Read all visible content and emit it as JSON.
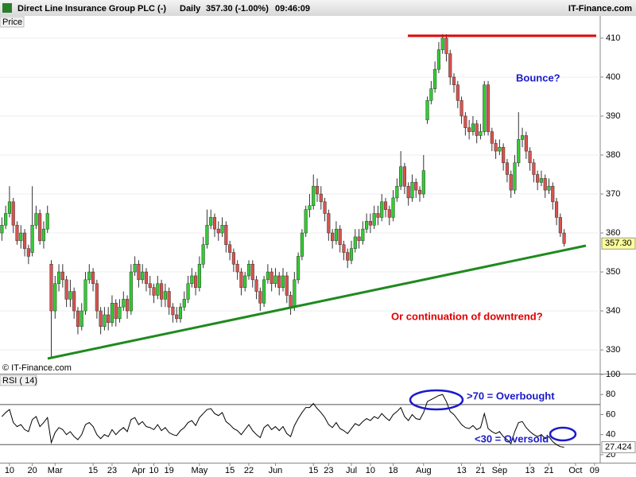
{
  "header": {
    "title": "Direct Line Insurance Group PLC (-)",
    "interval": "Daily",
    "quote": "357.30 (-1.00%)",
    "time": "09:46:09",
    "source": "IT-Finance.com",
    "copyright": "© IT-Finance.com"
  },
  "chart_data": [
    {
      "type": "candlestick",
      "panel_label": "Price",
      "up_color": "#33cc33",
      "down_color": "#d9534f",
      "categories": [
        null,
        null,
        "10",
        null,
        null,
        null,
        null,
        null,
        "20",
        null,
        null,
        null,
        null,
        null,
        "Mar",
        null,
        null,
        null,
        null,
        null,
        null,
        null,
        null,
        null,
        "15",
        null,
        null,
        null,
        null,
        "23",
        null,
        null,
        null,
        null,
        null,
        null,
        "Apr",
        null,
        null,
        null,
        "10",
        null,
        null,
        null,
        "19",
        null,
        null,
        null,
        null,
        null,
        null,
        null,
        "May",
        null,
        null,
        null,
        null,
        null,
        null,
        null,
        "15",
        null,
        null,
        null,
        null,
        "22",
        null,
        null,
        null,
        null,
        null,
        null,
        "Jun",
        null,
        null,
        null,
        null,
        null,
        null,
        null,
        null,
        null,
        "15",
        null,
        null,
        null,
        "23",
        null,
        null,
        null,
        null,
        null,
        "Jul",
        null,
        null,
        null,
        null,
        "10",
        null,
        null,
        null,
        null,
        null,
        "18",
        null,
        null,
        null,
        null,
        null,
        null,
        null,
        "Aug",
        null,
        null,
        null,
        null,
        null,
        null,
        null,
        null,
        null,
        "13",
        null,
        null,
        null,
        null,
        "21",
        null,
        null,
        null,
        null,
        "Sep",
        null,
        null,
        null,
        null,
        null,
        null,
        null,
        "13",
        null,
        null,
        null,
        null,
        "21",
        null,
        null,
        null,
        null,
        null,
        null,
        "Oct",
        null,
        null,
        null,
        null,
        "09",
        null
      ],
      "open": [
        360,
        362,
        365,
        368,
        362,
        358,
        360,
        356,
        355,
        362,
        365,
        358,
        361,
        352,
        340,
        347,
        350,
        348,
        343,
        345,
        340,
        336,
        340,
        348,
        350,
        347,
        340,
        336,
        339,
        337,
        342,
        338,
        341,
        343,
        340,
        350,
        352,
        348,
        350,
        347,
        346,
        344,
        347,
        343,
        345,
        341,
        339,
        338,
        341,
        343,
        347,
        349,
        346,
        352,
        357,
        362,
        364,
        361,
        360,
        362,
        357,
        355,
        352,
        350,
        346,
        349,
        352,
        348,
        345,
        342,
        348,
        350,
        347,
        349,
        346,
        349,
        344,
        341,
        348,
        354,
        360,
        366,
        367,
        372,
        370,
        368,
        365,
        360,
        358,
        361,
        357,
        355,
        353,
        356,
        359,
        358,
        361,
        363,
        362,
        365,
        364,
        368,
        366,
        364,
        369,
        372,
        377,
        372,
        369,
        373,
        371,
        370,
        389,
        394,
        397,
        402,
        407,
        410,
        406,
        400,
        398,
        394,
        390,
        387,
        386,
        388,
        385,
        386,
        398,
        386,
        383,
        381,
        382,
        378,
        375,
        371,
        378,
        384,
        385,
        381,
        378,
        375,
        373,
        374,
        371,
        372,
        368,
        364,
        360,
        null,
        null,
        null,
        null,
        null,
        null,
        null,
        null,
        null
      ],
      "high": [
        364,
        367,
        372,
        369,
        363,
        362,
        361,
        357,
        372,
        367,
        366,
        363,
        367,
        353,
        349,
        352,
        352,
        349,
        348,
        346,
        341,
        342,
        350,
        352,
        351,
        348,
        341,
        341,
        341,
        344,
        343,
        343,
        345,
        344,
        352,
        354,
        353,
        352,
        351,
        349,
        347,
        349,
        348,
        347,
        346,
        342,
        341,
        342,
        345,
        349,
        351,
        350,
        354,
        359,
        366,
        366,
        365,
        363,
        364,
        363,
        358,
        356,
        353,
        351,
        350,
        353,
        353,
        349,
        346,
        349,
        352,
        351,
        351,
        350,
        351,
        350,
        345,
        350,
        355,
        361,
        367,
        370,
        375,
        374,
        372,
        369,
        366,
        361,
        363,
        362,
        358,
        356,
        358,
        361,
        361,
        363,
        365,
        365,
        367,
        367,
        370,
        369,
        367,
        371,
        374,
        381,
        378,
        373,
        375,
        374,
        372,
        380,
        395,
        399,
        404,
        409,
        411,
        411,
        407,
        401,
        399,
        395,
        391,
        389,
        390,
        389,
        388,
        399,
        399,
        387,
        384,
        384,
        383,
        379,
        376,
        380,
        391,
        387,
        386,
        382,
        379,
        376,
        376,
        375,
        374,
        373,
        369,
        365,
        361,
        null,
        null,
        null,
        null,
        null,
        null,
        null,
        null,
        null
      ],
      "low": [
        358,
        361,
        364,
        360,
        357,
        356,
        354,
        352,
        354,
        361,
        357,
        356,
        360,
        328,
        338,
        345,
        346,
        341,
        341,
        338,
        334,
        335,
        339,
        347,
        345,
        338,
        334,
        335,
        335,
        336,
        336,
        337,
        340,
        338,
        339,
        349,
        346,
        347,
        345,
        344,
        342,
        343,
        341,
        341,
        339,
        337,
        337,
        337,
        340,
        342,
        346,
        344,
        345,
        351,
        356,
        361,
        359,
        358,
        359,
        355,
        353,
        350,
        348,
        344,
        345,
        348,
        346,
        343,
        340,
        341,
        347,
        345,
        346,
        344,
        345,
        342,
        339,
        340,
        347,
        353,
        359,
        364,
        366,
        368,
        366,
        363,
        358,
        356,
        357,
        355,
        353,
        351,
        352,
        355,
        356,
        357,
        360,
        360,
        361,
        362,
        363,
        364,
        362,
        363,
        368,
        371,
        370,
        367,
        368,
        369,
        368,
        369,
        388,
        393,
        396,
        401,
        406,
        404,
        398,
        396,
        392,
        388,
        385,
        384,
        385,
        383,
        384,
        385,
        385,
        381,
        379,
        380,
        376,
        373,
        369,
        370,
        377,
        382,
        379,
        376,
        373,
        371,
        372,
        369,
        370,
        366,
        362,
        359,
        356.5,
        null,
        null,
        null,
        null,
        null,
        null,
        null,
        null,
        null
      ],
      "close": [
        362,
        365,
        368,
        362,
        358,
        360,
        356,
        354,
        362,
        365,
        358,
        361,
        365,
        340,
        347,
        350,
        348,
        343,
        345,
        340,
        336,
        340,
        348,
        350,
        347,
        340,
        336,
        339,
        337,
        342,
        338,
        341,
        343,
        340,
        350,
        352,
        348,
        350,
        347,
        346,
        344,
        347,
        343,
        345,
        341,
        339,
        338,
        341,
        343,
        347,
        349,
        346,
        352,
        357,
        362,
        364,
        361,
        360,
        362,
        357,
        355,
        352,
        350,
        346,
        349,
        352,
        348,
        345,
        342,
        348,
        350,
        347,
        349,
        346,
        349,
        344,
        341,
        348,
        354,
        360,
        366,
        367,
        372,
        370,
        368,
        365,
        360,
        358,
        361,
        357,
        355,
        353,
        356,
        359,
        358,
        361,
        363,
        362,
        365,
        364,
        368,
        366,
        364,
        369,
        372,
        377,
        372,
        369,
        373,
        371,
        370,
        376,
        394,
        397,
        402,
        407,
        410,
        406,
        400,
        398,
        394,
        390,
        387,
        386,
        388,
        385,
        386,
        398,
        386,
        383,
        381,
        382,
        378,
        375,
        371,
        378,
        384,
        385,
        381,
        378,
        375,
        373,
        374,
        371,
        372,
        368,
        364,
        360,
        357.3,
        null,
        null,
        null,
        null,
        null,
        null,
        null,
        null,
        null
      ],
      "last_price": {
        "value": 357.3,
        "label": "357.30"
      },
      "ylim": [
        323.9,
        415.7
      ],
      "yticks": [
        330,
        340,
        350,
        360,
        370,
        380,
        390,
        400,
        410
      ],
      "grid": true,
      "annotations": [
        "Bounce?",
        "Or continuation of downtrend?"
      ]
    },
    {
      "type": "line",
      "panel_label": "RSI ( 14)",
      "color": "#000000",
      "values": [
        58,
        62,
        65,
        52,
        48,
        50,
        45,
        43,
        55,
        58,
        48,
        52,
        57,
        32,
        42,
        47,
        45,
        40,
        43,
        38,
        35,
        40,
        50,
        52,
        48,
        40,
        36,
        40,
        38,
        45,
        40,
        44,
        47,
        43,
        55,
        57,
        50,
        53,
        48,
        47,
        45,
        50,
        44,
        47,
        42,
        40,
        39,
        44,
        47,
        52,
        54,
        49,
        57,
        61,
        65,
        66,
        61,
        59,
        62,
        53,
        50,
        46,
        44,
        40,
        45,
        50,
        44,
        40,
        37,
        47,
        50,
        45,
        48,
        44,
        48,
        41,
        38,
        49,
        56,
        62,
        67,
        67,
        71,
        66,
        62,
        57,
        50,
        47,
        52,
        46,
        44,
        41,
        46,
        51,
        49,
        53,
        56,
        54,
        58,
        56,
        61,
        57,
        54,
        60,
        63,
        67,
        58,
        54,
        60,
        56,
        55,
        62,
        73,
        75,
        77,
        79,
        80,
        73,
        63,
        60,
        55,
        50,
        47,
        46,
        49,
        45,
        47,
        61,
        46,
        43,
        41,
        43,
        38,
        35,
        31,
        43,
        52,
        53,
        47,
        43,
        40,
        38,
        40,
        36,
        38,
        33,
        30,
        28,
        27.424,
        null,
        null,
        null,
        null,
        null,
        null,
        null,
        null,
        null
      ],
      "levels": [
        70,
        30
      ],
      "ylim": [
        12,
        100
      ],
      "yticks": [
        20,
        40,
        60,
        80,
        100
      ],
      "annotations": [
        ">70 = Overbought",
        "<30 = Oversold"
      ]
    }
  ]
}
